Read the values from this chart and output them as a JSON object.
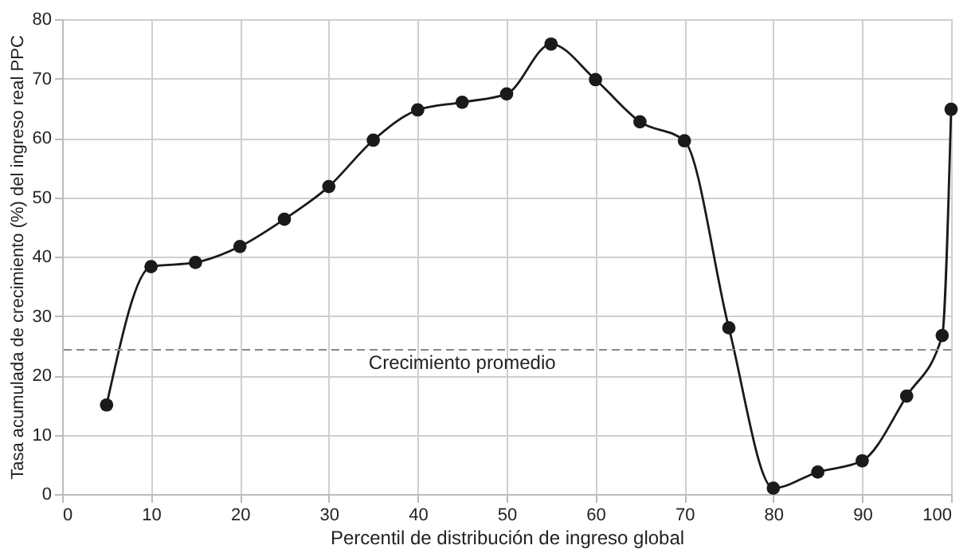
{
  "chart_data": {
    "type": "line",
    "xlabel": "Percentil de distribución de ingreso global",
    "ylabel": "Tasa acumulada de crecimiento (%) del ingreso real PPC",
    "x": [
      5,
      10,
      15,
      20,
      25,
      30,
      35,
      40,
      45,
      50,
      55,
      60,
      65,
      70,
      75,
      80,
      85,
      90,
      95,
      99,
      100
    ],
    "series": [
      {
        "color": "#1a1a1a",
        "values": [
          15,
          38.3,
          39,
          41.7,
          46.3,
          51.8,
          59.6,
          64.7,
          66,
          67.4,
          75.8,
          69.8,
          62.7,
          59.5,
          28,
          1,
          3.7,
          5.6,
          16.5,
          26.7,
          64.8
        ]
      }
    ],
    "xlim": [
      0,
      100
    ],
    "xticks": [
      0,
      10,
      20,
      30,
      40,
      50,
      60,
      70,
      80,
      90,
      100
    ],
    "ylim": [
      0,
      80
    ],
    "yticks": [
      0,
      10,
      20,
      30,
      40,
      50,
      60,
      70,
      80
    ],
    "ref_lines": [
      {
        "axis": "y",
        "value": 24.3,
        "label": "Crecimiento promedio",
        "color": "#888888",
        "line_style": "dashed"
      }
    ],
    "grid": true,
    "marker": "circle",
    "line_style": "solid"
  }
}
